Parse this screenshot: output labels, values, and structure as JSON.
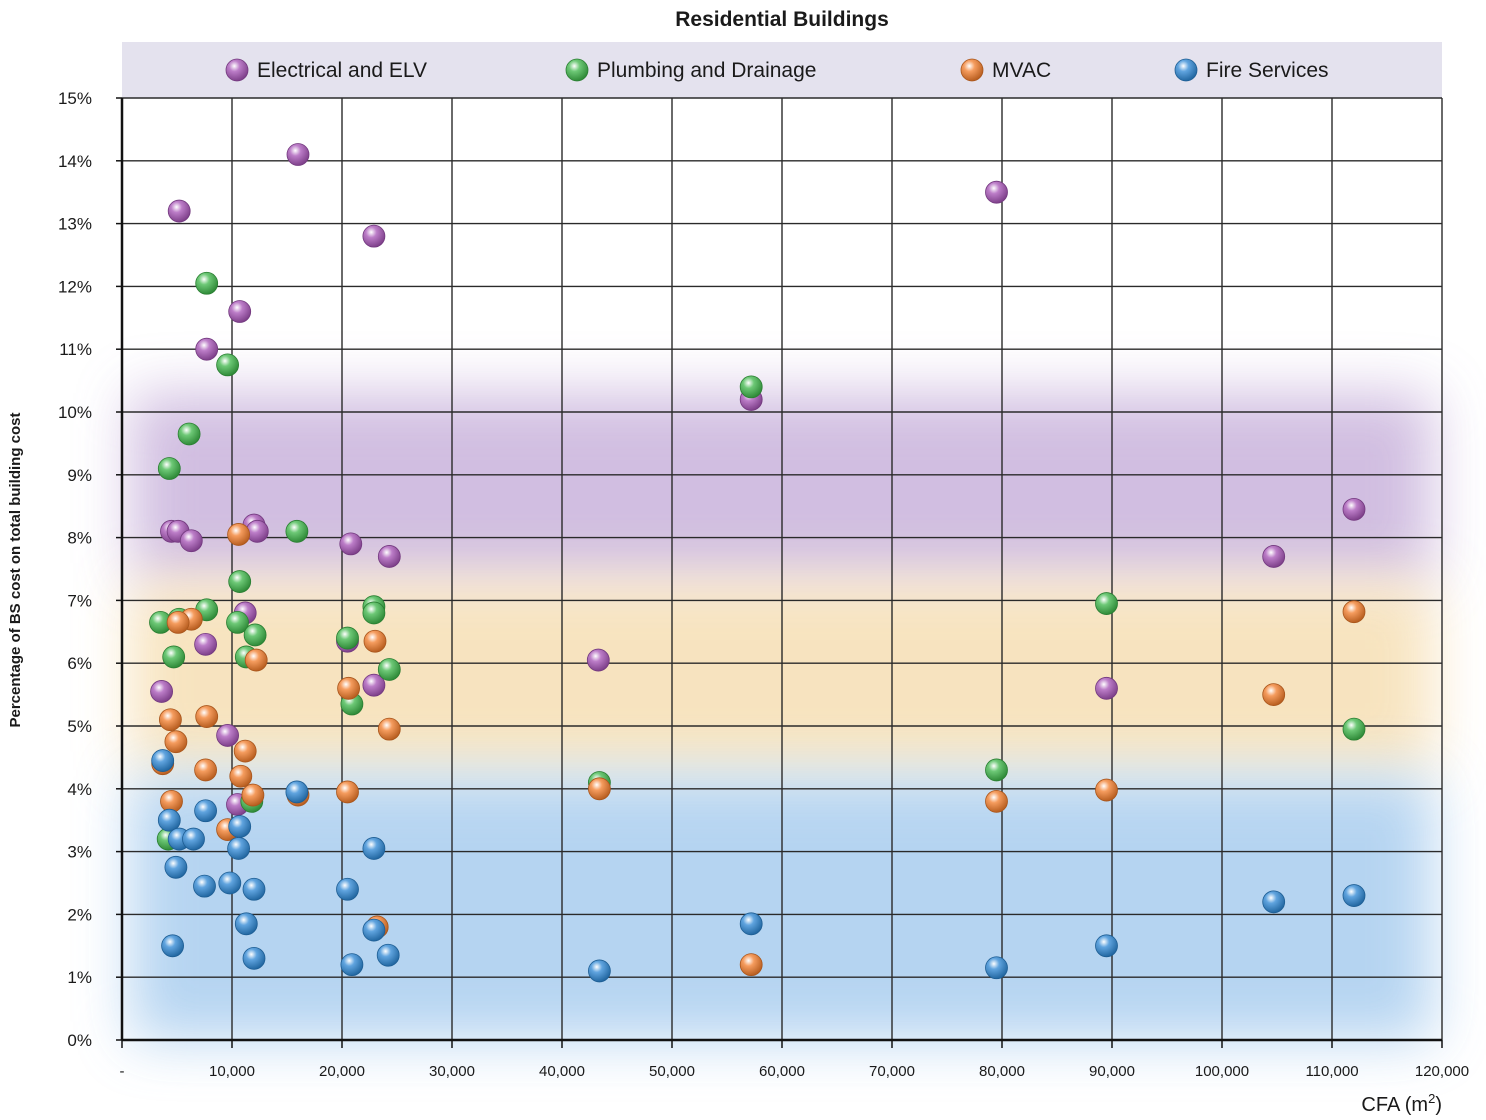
{
  "chart_data": {
    "type": "scatter",
    "title": "Residential Buildings",
    "xlabel": "CFA (m",
    "xlabel_sup": "2",
    "xlabel_close": ")",
    "ylabel": "Percentage of BS cost on total building cost",
    "xlim": [
      0,
      120000
    ],
    "ylim": [
      0,
      15
    ],
    "x_ticks": [
      0,
      10000,
      20000,
      30000,
      40000,
      50000,
      60000,
      70000,
      80000,
      90000,
      100000,
      110000,
      120000
    ],
    "x_tick_labels": [
      "-",
      "10,000",
      "20,000",
      "30,000",
      "40,000",
      "50,000",
      "60,000",
      "70,000",
      "80,000",
      "90,000",
      "100,000",
      "110,000",
      "120,000"
    ],
    "y_ticks": [
      0,
      1,
      2,
      3,
      4,
      5,
      6,
      7,
      8,
      9,
      10,
      11,
      12,
      13,
      14,
      15
    ],
    "y_tick_labels": [
      "0%",
      "1%",
      "2%",
      "3%",
      "4%",
      "5%",
      "6%",
      "7%",
      "8%",
      "9%",
      "10%",
      "11%",
      "12%",
      "13%",
      "14%",
      "15%"
    ],
    "grid": true,
    "legend_position": "top",
    "background_bands": [
      {
        "color": "#c9b3dc",
        "y_from": 7.3,
        "y_to": 10.3
      },
      {
        "color": "#f6dfb4",
        "y_from": 4.3,
        "y_to": 7.3
      },
      {
        "color": "#a9cdef",
        "y_from": 0.0,
        "y_to": 4.2
      }
    ],
    "series": [
      {
        "name": "Electrical and ELV",
        "color": "#a552b5",
        "points": [
          [
            16000,
            14.1
          ],
          [
            5200,
            13.2
          ],
          [
            22900,
            12.8
          ],
          [
            79500,
            13.5
          ],
          [
            10700,
            11.6
          ],
          [
            7700,
            11.0
          ],
          [
            57200,
            10.2
          ],
          [
            4500,
            8.1
          ],
          [
            5100,
            8.1
          ],
          [
            6300,
            7.95
          ],
          [
            12000,
            8.2
          ],
          [
            12300,
            8.1
          ],
          [
            20800,
            7.9
          ],
          [
            24300,
            7.7
          ],
          [
            11200,
            6.8
          ],
          [
            20500,
            6.35
          ],
          [
            7600,
            6.3
          ],
          [
            3600,
            5.55
          ],
          [
            22900,
            5.65
          ],
          [
            9600,
            4.85
          ],
          [
            10500,
            3.75
          ],
          [
            43300,
            6.05
          ],
          [
            89500,
            5.6
          ],
          [
            104700,
            7.7
          ],
          [
            112000,
            8.45
          ]
        ]
      },
      {
        "name": "Plumbing and Drainage",
        "color": "#3cb548",
        "points": [
          [
            7700,
            12.05
          ],
          [
            9600,
            10.75
          ],
          [
            6100,
            9.65
          ],
          [
            4300,
            9.1
          ],
          [
            15900,
            8.1
          ],
          [
            10700,
            7.3
          ],
          [
            7700,
            6.85
          ],
          [
            22900,
            6.9
          ],
          [
            22900,
            6.8
          ],
          [
            3500,
            6.65
          ],
          [
            5200,
            6.7
          ],
          [
            10500,
            6.65
          ],
          [
            12100,
            6.45
          ],
          [
            20500,
            6.4
          ],
          [
            4700,
            6.1
          ],
          [
            11300,
            6.1
          ],
          [
            24300,
            5.9
          ],
          [
            20900,
            5.35
          ],
          [
            4200,
            3.2
          ],
          [
            11800,
            3.8
          ],
          [
            43400,
            4.1
          ],
          [
            57200,
            10.4
          ],
          [
            79500,
            4.3
          ],
          [
            89500,
            6.95
          ],
          [
            112000,
            4.95
          ]
        ]
      },
      {
        "name": "MVAC",
        "color": "#f27b28",
        "points": [
          [
            10600,
            8.05
          ],
          [
            6300,
            6.7
          ],
          [
            5100,
            6.65
          ],
          [
            12200,
            6.05
          ],
          [
            23000,
            6.35
          ],
          [
            20600,
            5.6
          ],
          [
            4400,
            5.1
          ],
          [
            7700,
            5.15
          ],
          [
            24300,
            4.95
          ],
          [
            4900,
            4.75
          ],
          [
            11200,
            4.6
          ],
          [
            3700,
            4.4
          ],
          [
            7600,
            4.3
          ],
          [
            10800,
            4.2
          ],
          [
            4500,
            3.8
          ],
          [
            11900,
            3.9
          ],
          [
            16000,
            3.9
          ],
          [
            20500,
            3.95
          ],
          [
            9600,
            3.35
          ],
          [
            23200,
            1.8
          ],
          [
            43400,
            4.0
          ],
          [
            57200,
            1.2
          ],
          [
            79500,
            3.8
          ],
          [
            89500,
            3.98
          ],
          [
            104700,
            5.5
          ],
          [
            112000,
            6.82
          ]
        ]
      },
      {
        "name": "Fire Services",
        "color": "#2b86d4",
        "points": [
          [
            3700,
            4.45
          ],
          [
            15900,
            3.95
          ],
          [
            7600,
            3.65
          ],
          [
            4300,
            3.5
          ],
          [
            10700,
            3.4
          ],
          [
            5200,
            3.2
          ],
          [
            6500,
            3.2
          ],
          [
            10600,
            3.05
          ],
          [
            22900,
            3.05
          ],
          [
            4900,
            2.75
          ],
          [
            7500,
            2.45
          ],
          [
            9800,
            2.5
          ],
          [
            12000,
            2.4
          ],
          [
            20500,
            2.4
          ],
          [
            11300,
            1.85
          ],
          [
            22900,
            1.75
          ],
          [
            4600,
            1.5
          ],
          [
            12000,
            1.3
          ],
          [
            20900,
            1.2
          ],
          [
            24200,
            1.35
          ],
          [
            43400,
            1.1
          ],
          [
            57200,
            1.85
          ],
          [
            79500,
            1.15
          ],
          [
            89500,
            1.5
          ],
          [
            104700,
            2.2
          ],
          [
            112000,
            2.3
          ]
        ]
      }
    ]
  }
}
